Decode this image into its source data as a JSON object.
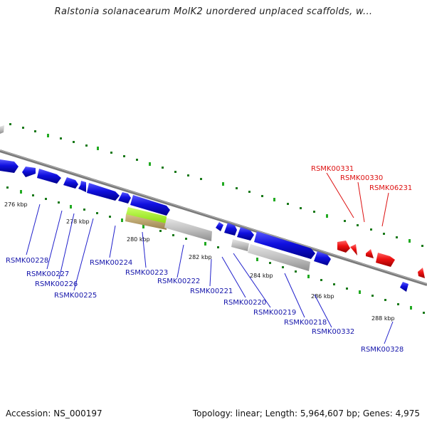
{
  "title": "Ralstonia solanacearum MolK2 unordered unplaced scaffolds, w...",
  "footer": {
    "accession": "Accession: NS_000197",
    "topology": "Topology: linear; Length: 5,964,607 bp; Genes: 4,975"
  },
  "colors": {
    "forward_gene": "#1010e0",
    "reverse_gene": "#ee1111",
    "rna_gene": "#b8b8b8",
    "highlight_gene": "#99ee22",
    "highlight_gene_lower": "#b8a060",
    "backbone": "#8a8a8a",
    "tick": "#22aa22"
  },
  "ticks": [
    "276 kbp",
    "278 kbp",
    "280 kbp",
    "282 kbp",
    "284 kbp",
    "286 kbp",
    "288 kbp"
  ],
  "forward_labels": [
    "RSMK00228",
    "RSMK00227",
    "RSMK00226",
    "RSMK00225",
    "RSMK00224",
    "RSMK00223",
    "RSMK00222",
    "RSMK00221",
    "RSMK00220",
    "RSMK00219",
    "RSMK00218",
    "RSMK00332",
    "RSMK00328"
  ],
  "reverse_labels": [
    "RSMK00331",
    "RSMK00330",
    "RSMK06231"
  ]
}
